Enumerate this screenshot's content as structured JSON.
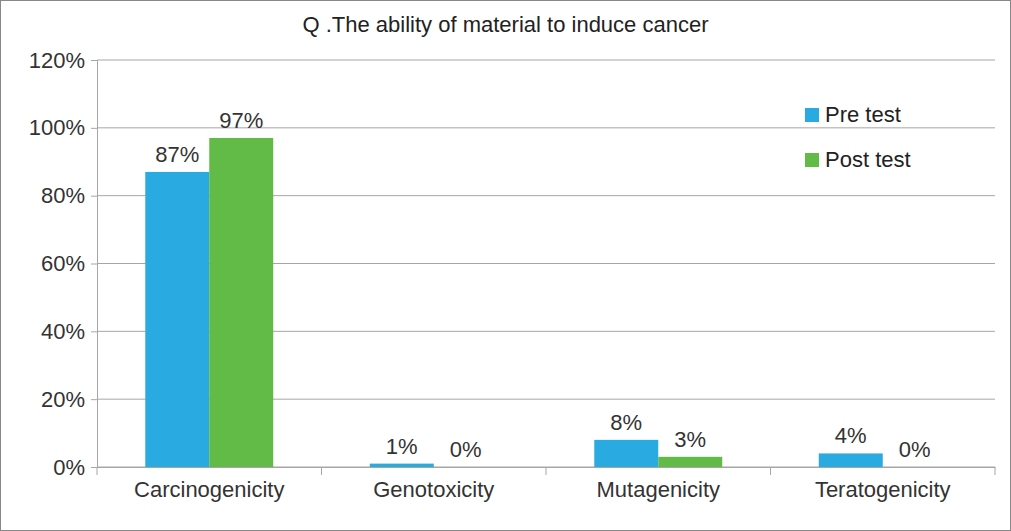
{
  "chart_data": {
    "type": "bar",
    "title": "Q .The ability of material to induce cancer",
    "categories": [
      "Carcinogenicity",
      "Genotoxicity",
      "Mutagenicity",
      "Teratogenicity"
    ],
    "series": [
      {
        "name": "Pre test",
        "color": "#29abe2",
        "values": [
          87,
          1,
          8,
          4
        ],
        "value_labels": [
          "87%",
          "1%",
          "8%",
          "4%"
        ]
      },
      {
        "name": "Post test",
        "color": "#62bb46",
        "values": [
          97,
          0,
          3,
          0
        ],
        "value_labels": [
          "97%",
          "0%",
          "3%",
          "0%"
        ]
      }
    ],
    "ylim": [
      0,
      120
    ],
    "yticks": [
      {
        "value": 0,
        "label": "0%"
      },
      {
        "value": 20,
        "label": "20%"
      },
      {
        "value": 40,
        "label": "40%"
      },
      {
        "value": 60,
        "label": "60%"
      },
      {
        "value": 80,
        "label": "80%"
      },
      {
        "value": 100,
        "label": "100%"
      },
      {
        "value": 120,
        "label": "120%"
      }
    ],
    "grid": true,
    "legend": "top-right",
    "data_labels": true
  }
}
